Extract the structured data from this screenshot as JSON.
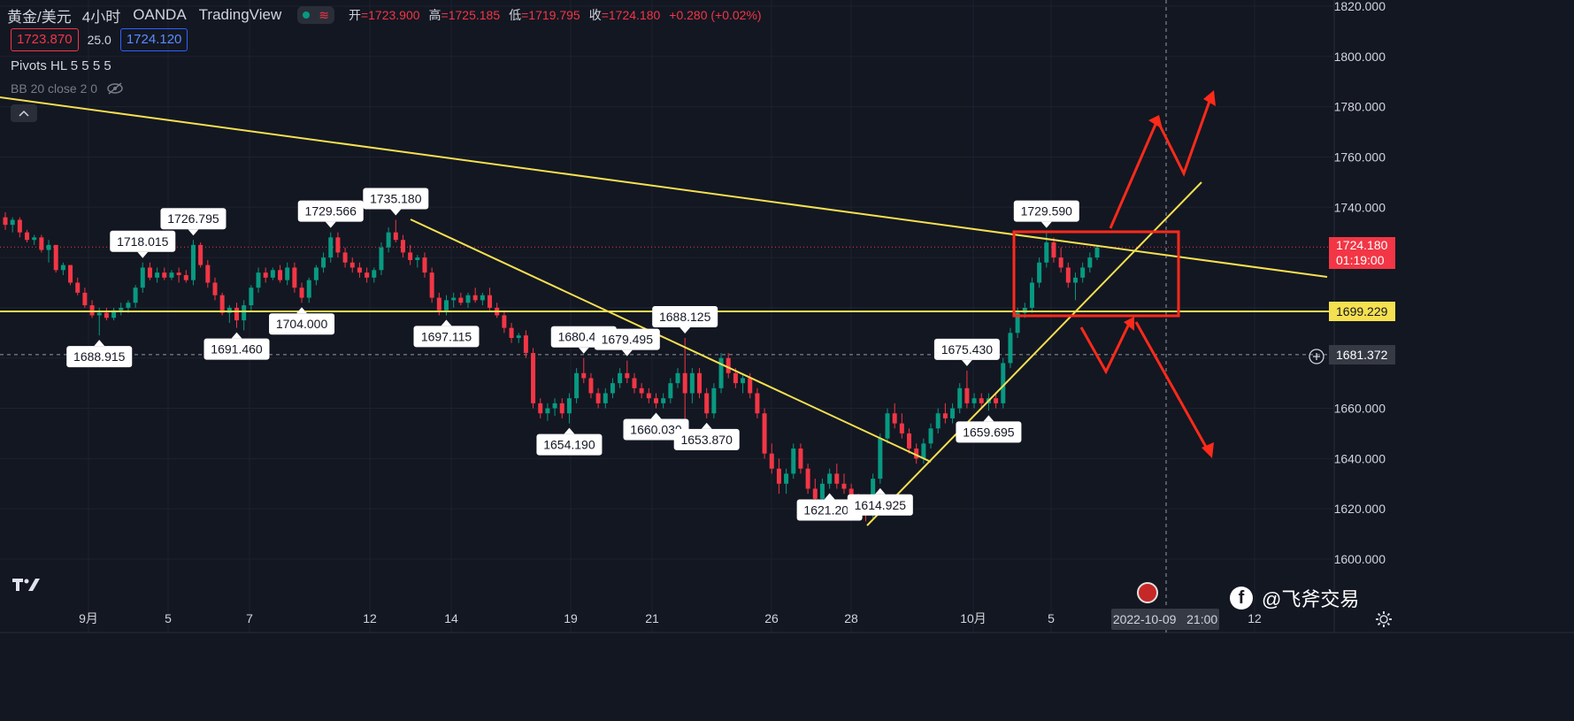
{
  "header": {
    "symbol": "黄金/美元",
    "timeframe": "4小时",
    "broker": "OANDA",
    "platform": "TradingView",
    "open_label": "开",
    "open_value": "=1723.900",
    "high_label": "高",
    "high_value": "=1725.185",
    "low_label": "低",
    "low_value": "=1719.795",
    "close_label": "收",
    "close_value": "=1724.180",
    "change": "+0.280 (+0.02%)",
    "bid": "1723.870",
    "spread": "25.0",
    "ask": "1724.120"
  },
  "indicators": {
    "pivots": "Pivots HL 5 5 5 5",
    "bb": "BB 20 close 2 0"
  },
  "colors": {
    "up": "#089981",
    "down": "#f23645",
    "line": "#f5e050",
    "arrow": "#ff2a1a",
    "bg": "#131722"
  },
  "price_tags": {
    "last_price": "1724.180",
    "countdown": "01:19:00",
    "horizontal_level": "1699.229",
    "crosshair_price": "1681.372"
  },
  "time_axis": {
    "labels": [
      "9月",
      "5",
      "7",
      "12",
      "14",
      "19",
      "21",
      "26",
      "28",
      "10月",
      "5",
      "12"
    ],
    "crosshair_date": "2022-10-09",
    "crosshair_time": "21:00"
  },
  "watermark": "@飞斧交易",
  "chart_data": {
    "type": "candlestick",
    "y_ticks": [
      1600,
      1620,
      1640,
      1660,
      1680,
      1700,
      1720,
      1740,
      1760,
      1780,
      1800,
      1820
    ],
    "y_tick_labels": [
      "1600.000",
      "1620.000",
      "1640.000",
      "1660.000",
      "1680.000",
      "1700.000",
      "1720.000",
      "1740.000",
      "1760.000",
      "1780.000",
      "1800.000",
      "1820.000"
    ],
    "ylim": [
      1594,
      1822
    ],
    "candles_approx": [
      [
        1736,
        1738,
        1731,
        1733
      ],
      [
        1733,
        1736,
        1730,
        1735
      ],
      [
        1735,
        1736,
        1728,
        1730
      ],
      [
        1730,
        1731,
        1726,
        1727
      ],
      [
        1727,
        1729,
        1725,
        1728
      ],
      [
        1728,
        1729,
        1722,
        1723
      ],
      [
        1723,
        1727,
        1718,
        1725
      ],
      [
        1725,
        1725,
        1714,
        1715
      ],
      [
        1715,
        1718,
        1713,
        1717
      ],
      [
        1717,
        1717,
        1709,
        1710
      ],
      [
        1710,
        1712,
        1705,
        1706
      ],
      [
        1706,
        1708,
        1700,
        1701
      ],
      [
        1701,
        1703,
        1696,
        1697
      ],
      [
        1697,
        1700,
        1689,
        1698
      ],
      [
        1698,
        1700,
        1695,
        1696
      ],
      [
        1696,
        1700,
        1695,
        1699
      ],
      [
        1699,
        1702,
        1697,
        1700
      ],
      [
        1700,
        1703,
        1698,
        1702
      ],
      [
        1702,
        1709,
        1700,
        1708
      ],
      [
        1708,
        1718,
        1706,
        1716
      ],
      [
        1716,
        1718,
        1711,
        1712
      ],
      [
        1712,
        1716,
        1710,
        1714
      ],
      [
        1714,
        1716,
        1711,
        1712
      ],
      [
        1712,
        1715,
        1711,
        1714
      ],
      [
        1714,
        1716,
        1710,
        1713
      ],
      [
        1713,
        1715,
        1710,
        1711
      ],
      [
        1711,
        1727,
        1709,
        1725
      ],
      [
        1725,
        1726,
        1716,
        1717
      ],
      [
        1717,
        1719,
        1708,
        1710
      ],
      [
        1710,
        1712,
        1703,
        1705
      ],
      [
        1705,
        1706,
        1697,
        1698
      ],
      [
        1698,
        1701,
        1694,
        1700
      ],
      [
        1700,
        1702,
        1692,
        1695
      ],
      [
        1695,
        1703,
        1691,
        1701
      ],
      [
        1701,
        1709,
        1699,
        1708
      ],
      [
        1708,
        1716,
        1706,
        1714
      ],
      [
        1714,
        1716,
        1710,
        1712
      ],
      [
        1712,
        1716,
        1711,
        1715
      ],
      [
        1715,
        1717,
        1710,
        1711
      ],
      [
        1711,
        1718,
        1709,
        1716
      ],
      [
        1716,
        1718,
        1706,
        1708
      ],
      [
        1708,
        1710,
        1702,
        1704
      ],
      [
        1704,
        1712,
        1702,
        1711
      ],
      [
        1711,
        1717,
        1709,
        1716
      ],
      [
        1716,
        1722,
        1714,
        1720
      ],
      [
        1720,
        1730,
        1718,
        1728
      ],
      [
        1728,
        1730,
        1720,
        1722
      ],
      [
        1722,
        1724,
        1716,
        1718
      ],
      [
        1718,
        1720,
        1714,
        1716
      ],
      [
        1716,
        1718,
        1712,
        1714
      ],
      [
        1714,
        1716,
        1710,
        1712
      ],
      [
        1712,
        1716,
        1710,
        1715
      ],
      [
        1715,
        1726,
        1713,
        1724
      ],
      [
        1724,
        1732,
        1722,
        1730
      ],
      [
        1730,
        1735,
        1726,
        1727
      ],
      [
        1727,
        1729,
        1720,
        1722
      ],
      [
        1722,
        1725,
        1717,
        1719
      ],
      [
        1719,
        1721,
        1716,
        1720
      ],
      [
        1720,
        1722,
        1712,
        1714
      ],
      [
        1714,
        1716,
        1702,
        1704
      ],
      [
        1704,
        1706,
        1697,
        1699
      ],
      [
        1699,
        1705,
        1697,
        1703
      ],
      [
        1703,
        1706,
        1700,
        1704
      ],
      [
        1704,
        1706,
        1701,
        1702
      ],
      [
        1702,
        1706,
        1700,
        1705
      ],
      [
        1705,
        1708,
        1702,
        1703
      ],
      [
        1703,
        1706,
        1701,
        1705
      ],
      [
        1705,
        1708,
        1699,
        1700
      ],
      [
        1700,
        1702,
        1696,
        1697
      ],
      [
        1697,
        1699,
        1690,
        1692
      ],
      [
        1692,
        1694,
        1686,
        1688
      ],
      [
        1688,
        1690,
        1686,
        1689
      ],
      [
        1689,
        1691,
        1680,
        1682
      ],
      [
        1682,
        1684,
        1660,
        1662
      ],
      [
        1662,
        1664,
        1656,
        1658
      ],
      [
        1658,
        1662,
        1655,
        1660
      ],
      [
        1660,
        1664,
        1657,
        1662
      ],
      [
        1662,
        1664,
        1656,
        1658
      ],
      [
        1658,
        1666,
        1654,
        1664
      ],
      [
        1664,
        1676,
        1662,
        1674
      ],
      [
        1674,
        1680,
        1670,
        1672
      ],
      [
        1672,
        1674,
        1664,
        1666
      ],
      [
        1666,
        1668,
        1660,
        1662
      ],
      [
        1662,
        1668,
        1660,
        1666
      ],
      [
        1666,
        1672,
        1664,
        1670
      ],
      [
        1670,
        1676,
        1668,
        1674
      ],
      [
        1674,
        1679,
        1670,
        1672
      ],
      [
        1672,
        1674,
        1666,
        1668
      ],
      [
        1668,
        1670,
        1664,
        1666
      ],
      [
        1666,
        1668,
        1662,
        1664
      ],
      [
        1664,
        1666,
        1660,
        1662
      ],
      [
        1662,
        1666,
        1660,
        1664
      ],
      [
        1664,
        1672,
        1662,
        1670
      ],
      [
        1670,
        1676,
        1668,
        1674
      ],
      [
        1674,
        1688,
        1654,
        1666
      ],
      [
        1666,
        1676,
        1662,
        1674
      ],
      [
        1674,
        1676,
        1664,
        1666
      ],
      [
        1666,
        1668,
        1656,
        1658
      ],
      [
        1658,
        1670,
        1656,
        1668
      ],
      [
        1668,
        1682,
        1666,
        1680
      ],
      [
        1680,
        1682,
        1672,
        1674
      ],
      [
        1674,
        1676,
        1668,
        1670
      ],
      [
        1670,
        1674,
        1666,
        1672
      ],
      [
        1672,
        1674,
        1664,
        1666
      ],
      [
        1666,
        1668,
        1656,
        1658
      ],
      [
        1658,
        1660,
        1640,
        1642
      ],
      [
        1642,
        1646,
        1634,
        1636
      ],
      [
        1636,
        1640,
        1626,
        1630
      ],
      [
        1630,
        1636,
        1626,
        1634
      ],
      [
        1634,
        1646,
        1632,
        1644
      ],
      [
        1644,
        1646,
        1634,
        1636
      ],
      [
        1636,
        1638,
        1626,
        1628
      ],
      [
        1628,
        1632,
        1621,
        1624
      ],
      [
        1624,
        1632,
        1622,
        1630
      ],
      [
        1630,
        1636,
        1628,
        1634
      ],
      [
        1634,
        1638,
        1628,
        1630
      ],
      [
        1630,
        1634,
        1626,
        1628
      ],
      [
        1628,
        1630,
        1622,
        1624
      ],
      [
        1624,
        1626,
        1618,
        1622
      ],
      [
        1622,
        1624,
        1615,
        1618
      ],
      [
        1618,
        1634,
        1616,
        1632
      ],
      [
        1632,
        1650,
        1630,
        1648
      ],
      [
        1648,
        1660,
        1646,
        1658
      ],
      [
        1658,
        1662,
        1652,
        1654
      ],
      [
        1654,
        1658,
        1648,
        1650
      ],
      [
        1650,
        1652,
        1642,
        1644
      ],
      [
        1644,
        1646,
        1638,
        1640
      ],
      [
        1640,
        1648,
        1638,
        1646
      ],
      [
        1646,
        1654,
        1644,
        1652
      ],
      [
        1652,
        1660,
        1650,
        1658
      ],
      [
        1658,
        1662,
        1654,
        1656
      ],
      [
        1656,
        1662,
        1654,
        1660
      ],
      [
        1660,
        1670,
        1658,
        1668
      ],
      [
        1668,
        1675,
        1660,
        1662
      ],
      [
        1662,
        1666,
        1660,
        1664
      ],
      [
        1664,
        1666,
        1660,
        1662
      ],
      [
        1662,
        1666,
        1659,
        1664
      ],
      [
        1664,
        1666,
        1660,
        1662
      ],
      [
        1662,
        1680,
        1660,
        1678
      ],
      [
        1678,
        1692,
        1676,
        1690
      ],
      [
        1690,
        1700,
        1688,
        1698
      ],
      [
        1698,
        1702,
        1696,
        1700
      ],
      [
        1700,
        1712,
        1698,
        1710
      ],
      [
        1710,
        1720,
        1708,
        1718
      ],
      [
        1718,
        1730,
        1716,
        1726
      ],
      [
        1726,
        1728,
        1718,
        1720
      ],
      [
        1720,
        1724,
        1714,
        1716
      ],
      [
        1716,
        1718,
        1708,
        1710
      ],
      [
        1710,
        1714,
        1703,
        1712
      ],
      [
        1712,
        1718,
        1710,
        1716
      ],
      [
        1716,
        1722,
        1714,
        1720
      ],
      [
        1720,
        1725,
        1719,
        1724
      ]
    ],
    "pivot_labels": [
      {
        "text": "1688.915",
        "i": 13,
        "pos": "below"
      },
      {
        "text": "1718.015",
        "i": 19,
        "pos": "above"
      },
      {
        "text": "1726.795",
        "i": 26,
        "pos": "above"
      },
      {
        "text": "1691.460",
        "i": 32,
        "pos": "below"
      },
      {
        "text": "1704.000",
        "i": 41,
        "pos": "below"
      },
      {
        "text": "1729.566",
        "i": 45,
        "pos": "above"
      },
      {
        "text": "1735.180",
        "i": 54,
        "pos": "above"
      },
      {
        "text": "1697.115",
        "i": 61,
        "pos": "below"
      },
      {
        "text": "1654.190",
        "i": 78,
        "pos": "below"
      },
      {
        "text": "1680.440",
        "i": 80,
        "pos": "above"
      },
      {
        "text": "1679.495",
        "i": 86,
        "pos": "above"
      },
      {
        "text": "1660.030",
        "i": 90,
        "pos": "below"
      },
      {
        "text": "1688.125",
        "i": 94,
        "pos": "above"
      },
      {
        "text": "1653.870",
        "i": 97,
        "pos": "below"
      },
      {
        "text": "1621.205",
        "i": 114,
        "pos": "below"
      },
      {
        "text": "1614.925",
        "i": 121,
        "pos": "below"
      },
      {
        "text": "1675.430",
        "i": 133,
        "pos": "above"
      },
      {
        "text": "1659.695",
        "i": 136,
        "pos": "below"
      },
      {
        "text": "1729.590",
        "i": 144,
        "pos": "above"
      }
    ]
  }
}
